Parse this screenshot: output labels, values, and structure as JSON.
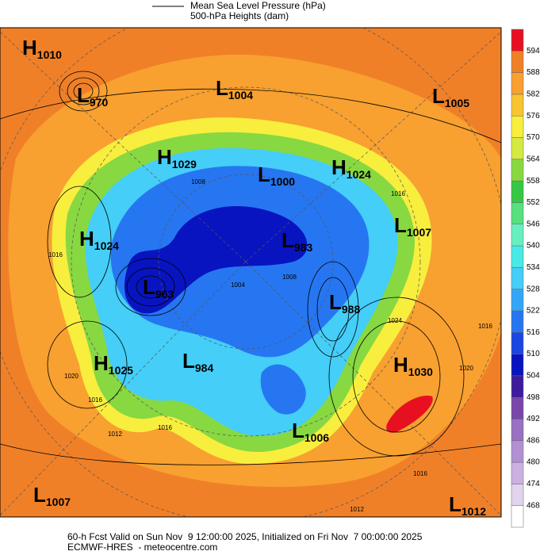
{
  "legend": {
    "lines": [
      "Mean Sea Level Pressure (hPa)",
      "500-hPa Heights (dam)"
    ]
  },
  "colorbar": {
    "levels": [
      "468",
      "474",
      "480",
      "486",
      "492",
      "498",
      "504",
      "510",
      "516",
      "522",
      "528",
      "534",
      "540",
      "546",
      "552",
      "558",
      "564",
      "570",
      "576",
      "582",
      "588",
      "594"
    ],
    "colors": [
      "#ffffff",
      "#e2d4ee",
      "#cbb0e2",
      "#b290d2",
      "#9a70c2",
      "#7a46aa",
      "#3c1c9c",
      "#0814c0",
      "#1a46e2",
      "#2676f2",
      "#34a6f8",
      "#44cef8",
      "#48eae6",
      "#66f0c0",
      "#56e07e",
      "#36c844",
      "#88d842",
      "#d4ea40",
      "#f8ee3e",
      "#f8c432",
      "#f8a030",
      "#f08028",
      "#e81020"
    ]
  },
  "centers": [
    {
      "kind": "H",
      "value": "1010"
    },
    {
      "kind": "L",
      "value": "970"
    },
    {
      "kind": "L",
      "value": "1004"
    },
    {
      "kind": "L",
      "value": "1005"
    },
    {
      "kind": "H",
      "value": "1029"
    },
    {
      "kind": "L",
      "value": "1000"
    },
    {
      "kind": "H",
      "value": "1024"
    },
    {
      "kind": "L",
      "value": "1007"
    },
    {
      "kind": "H",
      "value": "1024"
    },
    {
      "kind": "L",
      "value": "983"
    },
    {
      "kind": "L",
      "value": "963"
    },
    {
      "kind": "L",
      "value": "988"
    },
    {
      "kind": "H",
      "value": "1025"
    },
    {
      "kind": "L",
      "value": "984"
    },
    {
      "kind": "H",
      "value": "1030"
    },
    {
      "kind": "L",
      "value": "1006"
    },
    {
      "kind": "L",
      "value": "1007"
    },
    {
      "kind": "L",
      "value": "1012"
    }
  ],
  "contour_labels": [
    "1016",
    "1016",
    "1020",
    "1016",
    "1012",
    "1016",
    "1024",
    "1020",
    "1016",
    "1016",
    "1012",
    "1008",
    "1004",
    "1008"
  ],
  "footer": {
    "lines": [
      "60-h Fcst Valid on Sun Nov  9 12:00:00 2025, Initialized on Fri Nov  7 00:00:00 2025",
      "ECMWF-HRES  - meteocentre.com"
    ]
  }
}
